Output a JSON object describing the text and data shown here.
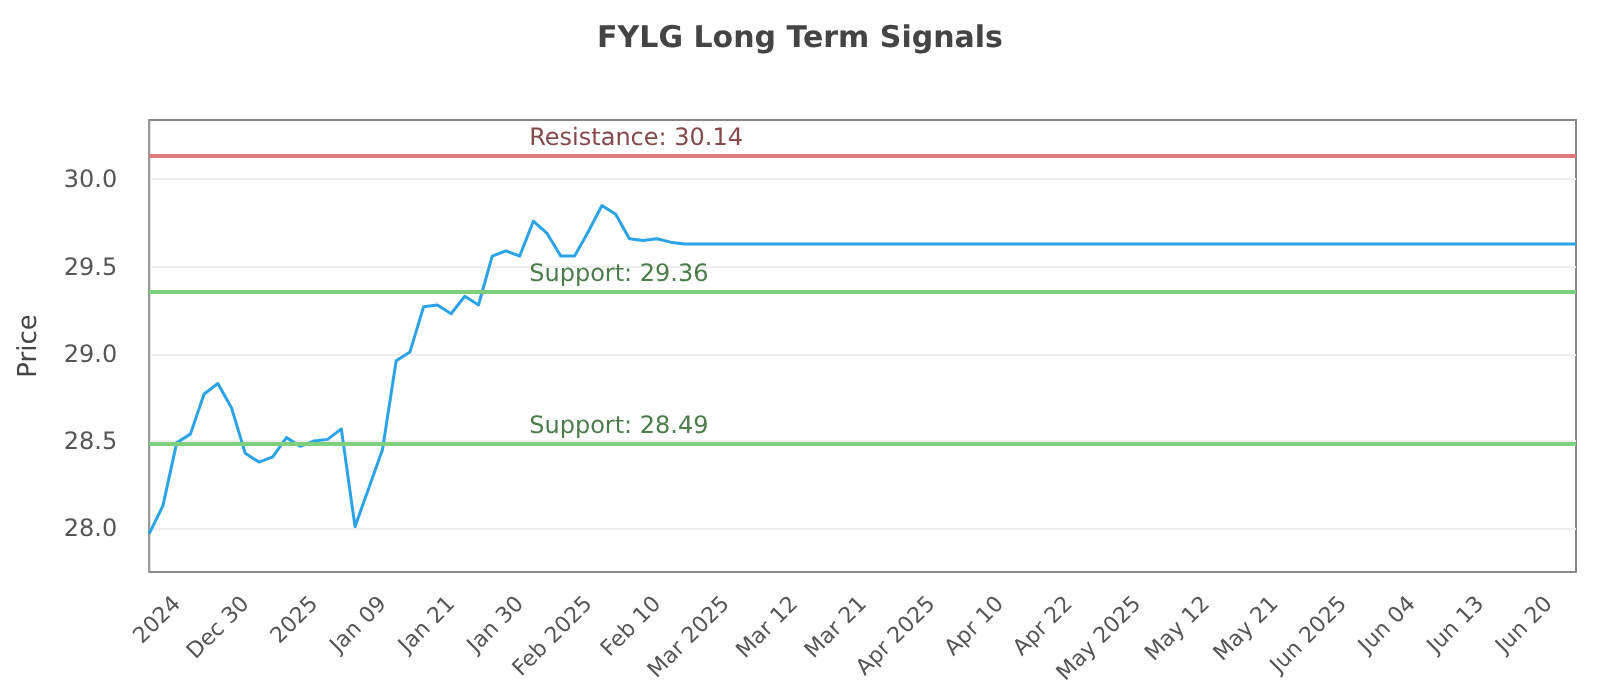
{
  "chart_data": {
    "type": "line",
    "title": "FYLG Long Term Signals",
    "ylabel": "Price",
    "categories": [
      null,
      null,
      "2024",
      null,
      null,
      null,
      null,
      "Dec 30",
      null,
      null,
      null,
      null,
      "2025",
      null,
      null,
      null,
      null,
      "Jan 09",
      null,
      null,
      null,
      null,
      "Jan 21",
      null,
      null,
      null,
      null,
      "Jan 30",
      null,
      null,
      null,
      null,
      "Feb 2025",
      null,
      null,
      null,
      null,
      "Feb 10",
      null,
      null,
      null,
      null,
      "Mar 2025",
      null,
      null,
      null,
      null,
      "Mar 12",
      null,
      null,
      null,
      null,
      "Mar 21",
      null,
      null,
      null,
      null,
      "Apr 2025",
      null,
      null,
      null,
      null,
      "Apr 10",
      null,
      null,
      null,
      null,
      "Apr 22",
      null,
      null,
      null,
      null,
      "May 2025",
      null,
      null,
      null,
      null,
      "May 12",
      null,
      null,
      null,
      null,
      "May 21",
      null,
      null,
      null,
      null,
      "Jun 2025",
      null,
      null,
      null,
      null,
      "Jun 04",
      null,
      null,
      null,
      null,
      "Jun 13",
      null,
      null,
      null,
      null,
      "Jun 20",
      null,
      null
    ],
    "series": [
      {
        "color": "#2ba3e6",
        "values": [
          27.97,
          28.13,
          28.49,
          28.54,
          28.77,
          28.83,
          28.69,
          28.43,
          28.38,
          28.41,
          28.52,
          28.47,
          28.5,
          28.51,
          28.57,
          28.01,
          28.23,
          28.45,
          28.96,
          29.01,
          29.27,
          29.28,
          29.23,
          29.33,
          29.28,
          29.56,
          29.59,
          29.56,
          29.76,
          29.69,
          29.56,
          29.56,
          29.7,
          29.85,
          29.8,
          29.66,
          29.65,
          29.66,
          29.64,
          29.63,
          29.63,
          29.63,
          29.63,
          29.63,
          29.63,
          29.63,
          29.63,
          29.63,
          29.63,
          29.63,
          29.63,
          29.63,
          29.63,
          29.63,
          29.63,
          29.63,
          29.63,
          29.63,
          29.63,
          29.63,
          29.63,
          29.63,
          29.63,
          29.63,
          29.63,
          29.63,
          29.63,
          29.63,
          29.63,
          29.63,
          29.63,
          29.63,
          29.63,
          29.63,
          29.63,
          29.63,
          29.63,
          29.63,
          29.63,
          29.63,
          29.63,
          29.63,
          29.63,
          29.63,
          29.63,
          29.63,
          29.63,
          29.63,
          29.63,
          29.63,
          29.63,
          29.63,
          29.63,
          29.63,
          29.63,
          29.63,
          29.63,
          29.63,
          29.63,
          29.63,
          29.63,
          29.63,
          29.63,
          29.63,
          29.63
        ]
      }
    ],
    "ylim": [
      27.75,
      30.34
    ],
    "yticks": [
      {
        "value": 28,
        "label": "28.0"
      },
      {
        "value": 28.5,
        "label": "28.5"
      },
      {
        "value": 29,
        "label": "29.0"
      },
      {
        "value": 29.5,
        "label": "29.5"
      },
      {
        "value": 30,
        "label": "30.0"
      }
    ],
    "ref_lines": [
      {
        "axis": "y",
        "value": 30.14,
        "label": "Resistance: 30.14",
        "color": "#e07a7a"
      },
      {
        "axis": "y",
        "value": 29.36,
        "label": "Support: 29.36",
        "color": "#7fcf7f"
      },
      {
        "axis": "y",
        "value": 28.49,
        "label": "Support: 28.49",
        "color": "#7fcf7f"
      }
    ],
    "grid": "y",
    "marker": "none",
    "line_style": "solid"
  }
}
